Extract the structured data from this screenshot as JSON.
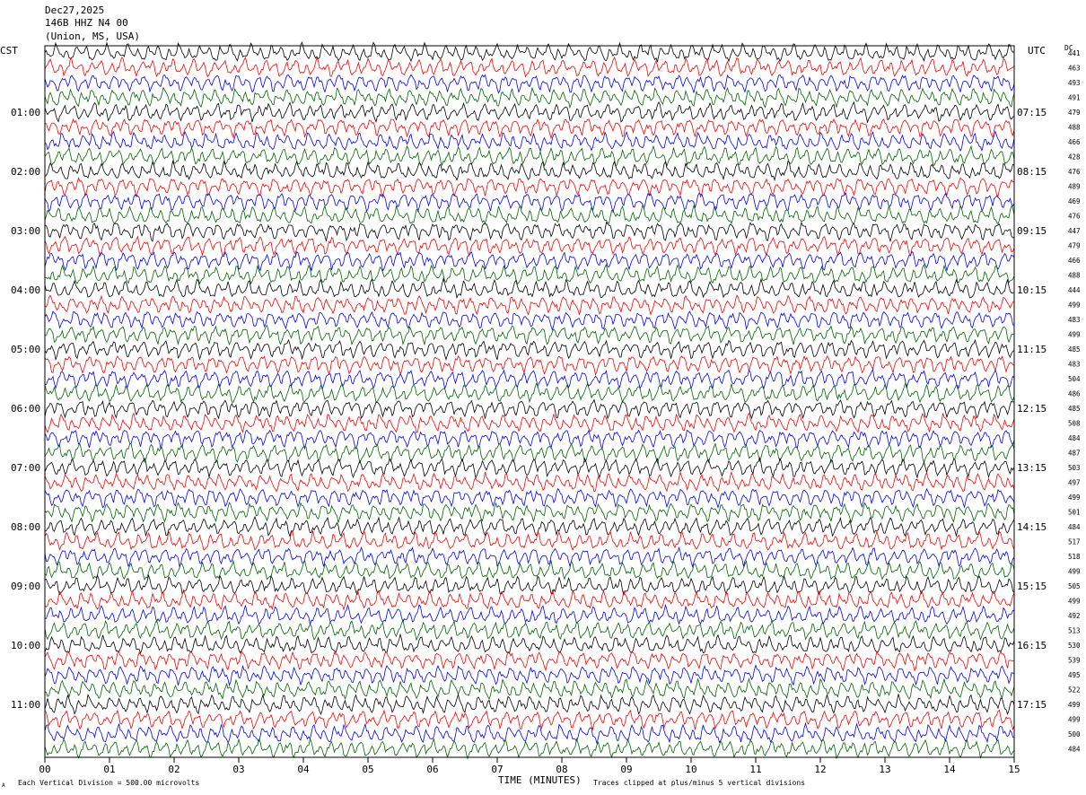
{
  "header": {
    "date": "Dec27,2025",
    "station": "146B HHZ N4 00",
    "location": "(Union, MS, USA)"
  },
  "left_tz": "CST",
  "right_tz": "UTC",
  "dc_label": "DC",
  "footer": {
    "scale_note": "Each Vertical Division =  500.00 microvolts",
    "clip_note": "Traces clipped at plus/minus 5 vertical divisions",
    "corner_mark": "A"
  },
  "colors": {
    "black": "#000000",
    "red": "#ff0000",
    "blue": "#0000ff",
    "green": "#006400"
  },
  "chart_data": {
    "type": "line",
    "title": "Dec27,2025 146B HHZ N4 00 (Union, MS, USA)",
    "xlabel": "TIME (MINUTES)",
    "ylabel": "",
    "x_ticks": [
      "00",
      "01",
      "02",
      "03",
      "04",
      "05",
      "06",
      "07",
      "08",
      "09",
      "10",
      "11",
      "12",
      "13",
      "14",
      "15"
    ],
    "xlim": [
      0,
      15
    ],
    "left_time_labels": [
      "01:00",
      "02:00",
      "03:00",
      "04:00",
      "05:00",
      "06:00",
      "07:00",
      "08:00",
      "09:00",
      "10:00",
      "11:00"
    ],
    "right_time_labels": [
      "07:15",
      "08:15",
      "09:15",
      "10:15",
      "11:15",
      "12:15",
      "13:15",
      "14:15",
      "15:15",
      "16:15",
      "17:15"
    ],
    "trace_colors_cycle": [
      "black",
      "red",
      "blue",
      "green"
    ],
    "trace_count": 48,
    "dc_offsets": [
      441,
      463,
      493,
      491,
      479,
      488,
      466,
      428,
      476,
      489,
      469,
      476,
      447,
      479,
      466,
      488,
      444,
      499,
      483,
      499,
      485,
      483,
      504,
      486,
      485,
      508,
      484,
      487,
      503,
      497,
      499,
      501,
      484,
      517,
      518,
      499,
      505,
      499,
      492,
      513,
      530,
      539,
      495,
      522,
      499,
      499,
      500,
      484
    ],
    "grid": false,
    "legend": "none"
  }
}
